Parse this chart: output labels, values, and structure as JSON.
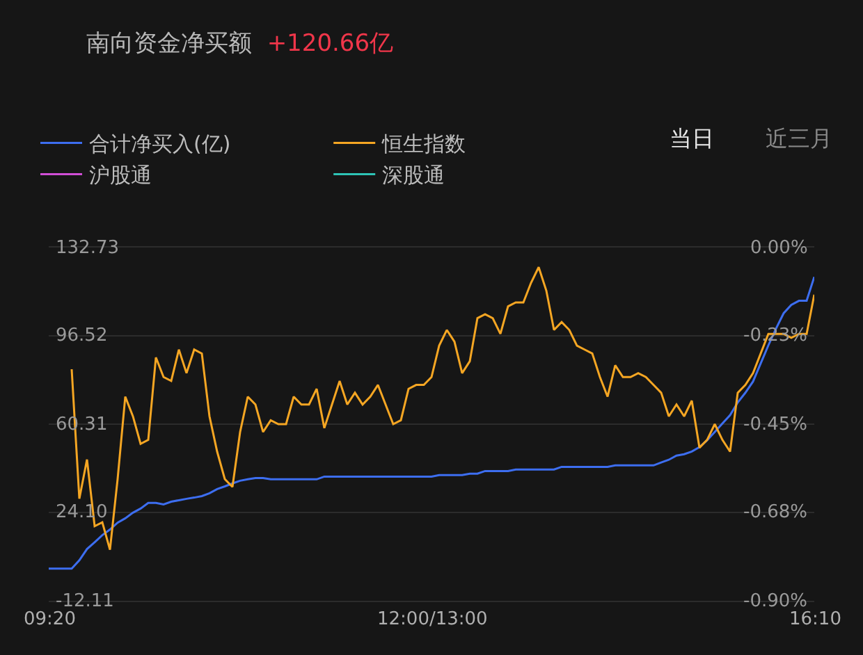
{
  "chart_data": {
    "type": "line",
    "title": "南向资金净买额",
    "subtitle": "+120.66亿",
    "categories": [
      "09:20",
      null,
      null,
      null,
      null,
      null,
      null,
      null,
      null,
      null,
      null,
      null,
      null,
      null,
      null,
      null,
      null,
      null,
      null,
      null,
      null,
      null,
      null,
      null,
      null,
      null,
      null,
      null,
      null,
      null,
      null,
      null,
      null,
      null,
      null,
      null,
      null,
      null,
      null,
      null,
      null,
      null,
      null,
      null,
      null,
      null,
      null,
      null,
      null,
      null,
      "12:00/13:00",
      null,
      null,
      null,
      null,
      null,
      null,
      null,
      null,
      null,
      null,
      null,
      null,
      null,
      null,
      null,
      null,
      null,
      null,
      null,
      null,
      null,
      null,
      null,
      null,
      null,
      null,
      null,
      null,
      null,
      null,
      null,
      null,
      null,
      null,
      null,
      null,
      null,
      null,
      null,
      null,
      null,
      null,
      null,
      null,
      null,
      null,
      null,
      null,
      null,
      "16:10"
    ],
    "series": [
      {
        "name": "合计净买入(亿)",
        "color": "#3d6ef0",
        "values": [
          1.1,
          1.1,
          1.1,
          1.1,
          4.5,
          9.1,
          11.9,
          14.8,
          17.1,
          19.9,
          21.7,
          24.0,
          25.7,
          28.0,
          28.0,
          27.4,
          28.5,
          29.1,
          29.7,
          30.2,
          30.8,
          32.0,
          33.7,
          34.8,
          36.0,
          37.1,
          37.7,
          38.2,
          38.2,
          37.7,
          37.7,
          37.7,
          37.7,
          37.7,
          37.7,
          37.7,
          38.8,
          38.8,
          38.8,
          38.8,
          38.8,
          38.8,
          38.8,
          38.8,
          38.8,
          38.8,
          38.8,
          38.8,
          38.8,
          38.8,
          38.8,
          39.4,
          39.4,
          39.4,
          39.4,
          40.0,
          40.0,
          41.1,
          41.1,
          41.1,
          41.1,
          41.7,
          41.7,
          41.7,
          41.7,
          41.7,
          41.7,
          42.8,
          42.8,
          42.8,
          42.8,
          42.8,
          42.8,
          42.8,
          43.4,
          43.4,
          43.4,
          43.4,
          43.4,
          43.4,
          44.6,
          45.7,
          47.4,
          48.0,
          49.1,
          50.9,
          53.7,
          57.1,
          60.6,
          64.0,
          69.2,
          73.2,
          77.8,
          85.2,
          92.6,
          99.5,
          105.8,
          109.2,
          110.9,
          110.9,
          120.7
        ]
      },
      {
        "name": "恒生指数",
        "axis": "y2",
        "color": "#f5a623",
        "values": [
          null,
          null,
          null,
          -0.31,
          -0.64,
          -0.54,
          -0.71,
          -0.7,
          -0.77,
          -0.59,
          -0.38,
          -0.43,
          -0.5,
          -0.49,
          -0.28,
          -0.33,
          -0.34,
          -0.26,
          -0.32,
          -0.26,
          -0.27,
          -0.43,
          -0.52,
          -0.59,
          -0.61,
          -0.47,
          -0.38,
          -0.4,
          -0.47,
          -0.44,
          -0.45,
          -0.45,
          -0.38,
          -0.4,
          -0.4,
          -0.36,
          -0.46,
          -0.4,
          -0.34,
          -0.4,
          -0.37,
          -0.4,
          -0.38,
          -0.35,
          -0.4,
          -0.45,
          -0.44,
          -0.36,
          -0.35,
          -0.35,
          -0.33,
          -0.25,
          -0.21,
          -0.24,
          -0.32,
          -0.29,
          -0.18,
          -0.17,
          -0.18,
          -0.22,
          -0.15,
          -0.14,
          -0.14,
          -0.09,
          -0.05,
          -0.11,
          -0.21,
          -0.19,
          -0.21,
          -0.25,
          -0.26,
          -0.27,
          -0.33,
          -0.38,
          -0.3,
          -0.33,
          -0.33,
          -0.32,
          -0.33,
          -0.35,
          -0.37,
          -0.43,
          -0.4,
          -0.43,
          -0.39,
          -0.51,
          -0.49,
          -0.45,
          -0.49,
          -0.52,
          -0.37,
          -0.35,
          -0.32,
          -0.27,
          -0.22,
          -0.22,
          -0.22,
          -0.23,
          -0.22,
          -0.22,
          -0.12
        ]
      },
      {
        "name": "沪股通",
        "color": "#d04ed6",
        "values": [
          null,
          null,
          null,
          null,
          null,
          null,
          null,
          null,
          null,
          null,
          null,
          null,
          null,
          null,
          null,
          null,
          null,
          null,
          null,
          null,
          null,
          null,
          null,
          null,
          null,
          null,
          null,
          null,
          null,
          null,
          null,
          null,
          null,
          null,
          null,
          null,
          null,
          null,
          null,
          null,
          null,
          null,
          null,
          null,
          null,
          null,
          null,
          null,
          null,
          null,
          null,
          null,
          null,
          null,
          null,
          null,
          null,
          null,
          null,
          null,
          null,
          null,
          null,
          null,
          null,
          null,
          null,
          null,
          null,
          null,
          null,
          null,
          null,
          null,
          null,
          null,
          null,
          null,
          null,
          null,
          null,
          null,
          null,
          null,
          null,
          null,
          null,
          null,
          null,
          null,
          null,
          null,
          null,
          null,
          null,
          null,
          null,
          null,
          null,
          null,
          null
        ]
      },
      {
        "name": "深股通",
        "color": "#2ec4b6",
        "values": [
          null,
          null,
          null,
          null,
          null,
          null,
          null,
          null,
          null,
          null,
          null,
          null,
          null,
          null,
          null,
          null,
          null,
          null,
          null,
          null,
          null,
          null,
          null,
          null,
          null,
          null,
          null,
          null,
          null,
          null,
          null,
          null,
          null,
          null,
          null,
          null,
          null,
          null,
          null,
          null,
          null,
          null,
          null,
          null,
          null,
          null,
          null,
          null,
          null,
          null,
          null,
          null,
          null,
          null,
          null,
          null,
          null,
          null,
          null,
          null,
          null,
          null,
          null,
          null,
          null,
          null,
          null,
          null,
          null,
          null,
          null,
          null,
          null,
          null,
          null,
          null,
          null,
          null,
          null,
          null,
          null,
          null,
          null,
          null,
          null,
          null,
          null,
          null,
          null,
          null,
          null,
          null,
          null,
          null,
          null,
          null,
          null,
          null,
          null,
          null,
          null
        ]
      }
    ],
    "ylim": [
      -12.11,
      132.73
    ],
    "yticks": [
      {
        "value": -12.11,
        "label": "-12.11"
      },
      {
        "value": 24.1,
        "label": "24.10"
      },
      {
        "value": 60.31,
        "label": "60.31"
      },
      {
        "value": 96.52,
        "label": "96.52"
      },
      {
        "value": 132.73,
        "label": "132.73"
      }
    ],
    "y2lim": [
      -0.9,
      0.0
    ],
    "y2ticks": [
      {
        "value": -0.9,
        "label": "-0.90%"
      },
      {
        "value": -0.675,
        "label": "-0.68%"
      },
      {
        "value": -0.45,
        "label": "-0.45%"
      },
      {
        "value": -0.225,
        "label": "-0.23%"
      },
      {
        "value": 0.0,
        "label": "0.00%"
      }
    ],
    "grid": "y",
    "legend": "top",
    "marker": "none",
    "annotations": [
      "当日",
      "近三月"
    ]
  }
}
